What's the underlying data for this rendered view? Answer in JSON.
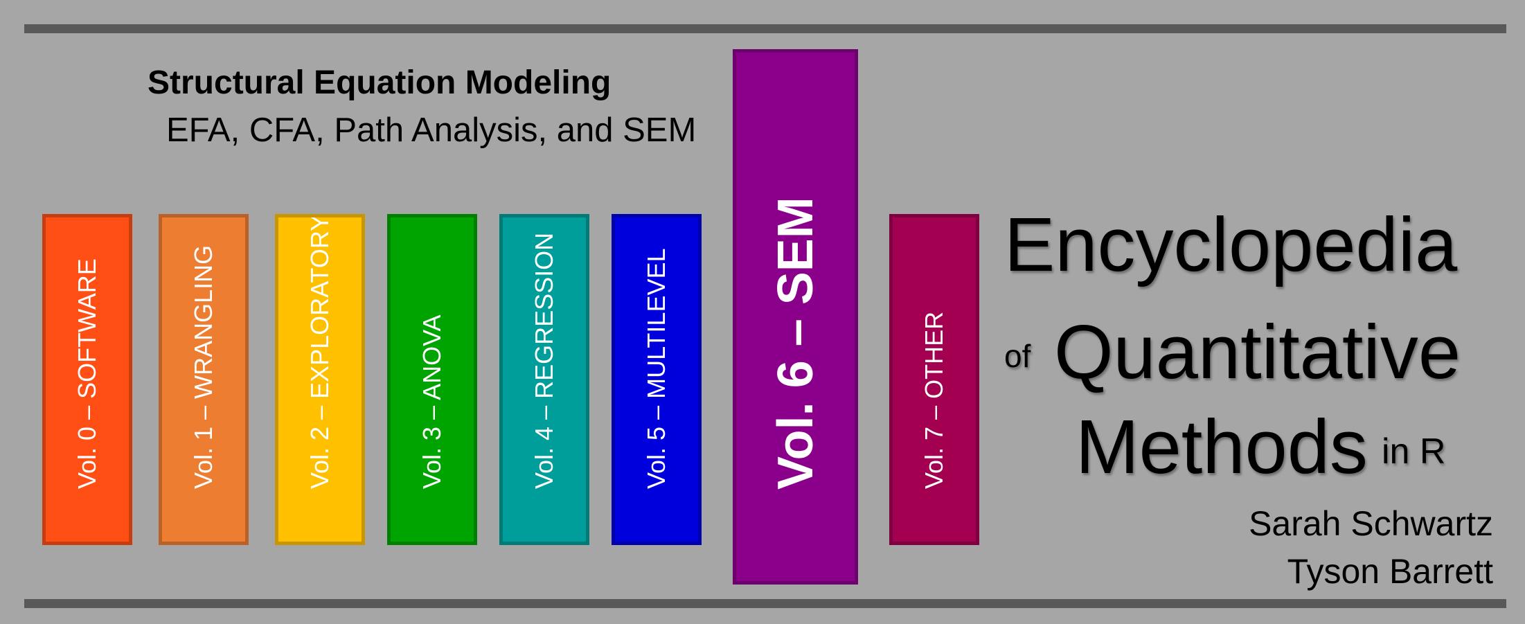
{
  "header": {
    "title": "Structural Equation Modeling",
    "subtitle": "EFA, CFA, Path Analysis, and SEM"
  },
  "volumes": [
    {
      "label": "Vol. 0 – SOFTWARE",
      "color": "#ff4f14"
    },
    {
      "label": "Vol. 1 – WRANGLING",
      "color": "#ed7d31"
    },
    {
      "label": "Vol. 2 – EXPLORATORY",
      "color": "#ffc000"
    },
    {
      "label": "Vol. 3 – ANOVA",
      "color": "#00a400"
    },
    {
      "label": "Vol. 4 – REGRESSION",
      "color": "#009e9a"
    },
    {
      "label": "Vol. 5 – MULTILEVEL",
      "color": "#0000dd"
    },
    {
      "label": "Vol. 6 – SEM",
      "color": "#8b008b"
    },
    {
      "label": "Vol. 7 – OTHER",
      "color": "#a30052"
    }
  ],
  "book_title": {
    "line1": "Encyclopedia",
    "line2_prefix": "of",
    "line2": "Quantitative",
    "line3": "Methods",
    "line3_suffix": "in R"
  },
  "authors": [
    "Sarah Schwartz",
    "Tyson Barrett"
  ]
}
